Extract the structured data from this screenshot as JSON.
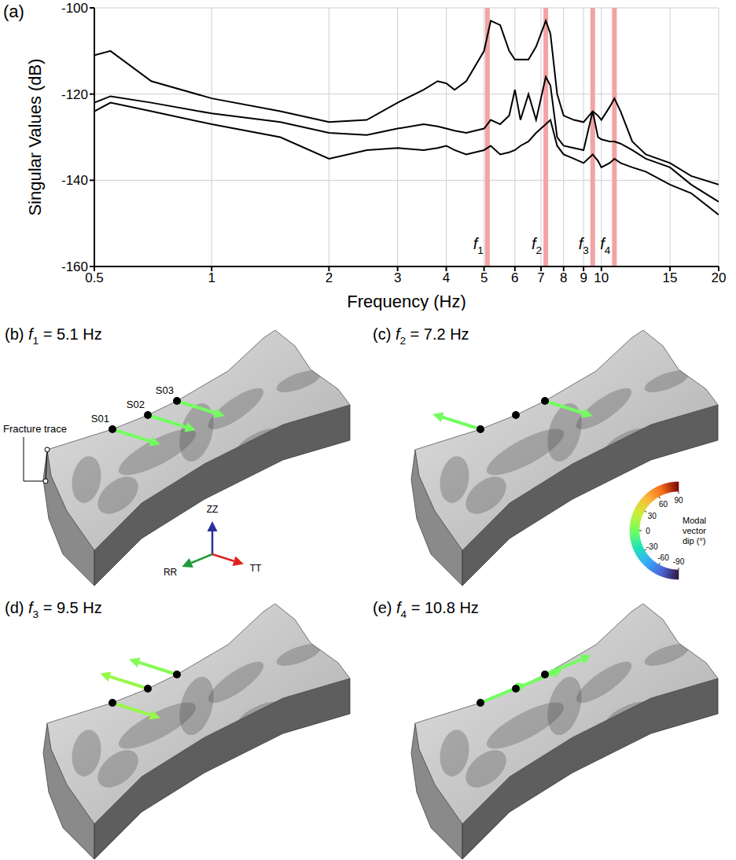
{
  "chart_data": {
    "type": "line",
    "letter": "(a)",
    "x_label": "Frequency (Hz)",
    "y_label": "Singular Values (dB)",
    "log": "x",
    "grid": true,
    "xlim": [
      0.5,
      20
    ],
    "xticks": [
      0.5,
      1,
      2,
      3,
      4,
      5,
      6,
      7,
      8,
      9,
      10,
      15,
      20
    ],
    "ylim": [
      -160,
      -100
    ],
    "yticks": [
      -160,
      -140,
      -120,
      -100
    ],
    "x": [
      0.5,
      0.55,
      0.7,
      1,
      1.5,
      2,
      2.5,
      3,
      3.5,
      3.8,
      4,
      4.2,
      4.5,
      5,
      5.2,
      5.5,
      5.8,
      6,
      6.2,
      6.5,
      6.8,
      7.2,
      7.4,
      7.7,
      8,
      8.5,
      9,
      9.5,
      9.8,
      10,
      10.5,
      10.8,
      11.2,
      12,
      13,
      15,
      17,
      20
    ],
    "series": [
      {
        "color": "#000000",
        "values": [
          -111,
          -110,
          -117,
          -121,
          -124,
          -126.5,
          -126,
          -122,
          -119,
          -117,
          -117.5,
          -119,
          -117,
          -110,
          -103,
          -104,
          -110,
          -112,
          -112,
          -112,
          -109,
          -103,
          -106,
          -120,
          -125,
          -126,
          -126.5,
          -124,
          -125,
          -126,
          -123,
          -121,
          -124,
          -131,
          -134,
          -136,
          -139,
          -141
        ]
      },
      {
        "color": "#000000",
        "values": [
          -122,
          -120.5,
          -122,
          -124.5,
          -126.5,
          -129,
          -129.5,
          -128,
          -127,
          -127.5,
          -128,
          -128.5,
          -129,
          -128,
          -126,
          -127,
          -125,
          -119,
          -126,
          -120,
          -126,
          -116,
          -118,
          -130,
          -132,
          -132.5,
          -133,
          -124,
          -130,
          -130.5,
          -131,
          -131,
          -131.5,
          -133,
          -135,
          -137,
          -141,
          -145
        ]
      },
      {
        "color": "#000000",
        "values": [
          -124,
          -122,
          -124,
          -127,
          -130,
          -135,
          -133,
          -132.5,
          -133,
          -132.5,
          -132,
          -133,
          -134,
          -133,
          -132,
          -134,
          -133.5,
          -133,
          -132,
          -131,
          -129,
          -127,
          -126,
          -132,
          -134,
          -135,
          -136,
          -134,
          -135.5,
          -137,
          -136,
          -135,
          -136,
          -137,
          -138,
          -141,
          -143,
          -148
        ]
      }
    ],
    "modes": [
      {
        "label": "f1",
        "frequency": 5.1
      },
      {
        "label": "f2",
        "frequency": 7.2
      },
      {
        "label": "f3",
        "frequency": 9.5
      },
      {
        "label": "f4",
        "frequency": 10.8
      }
    ]
  },
  "stations": [
    "S01",
    "S02",
    "S03"
  ],
  "axes": [
    {
      "label": "ZZ",
      "color": "#2a2f9c"
    },
    {
      "label": "RR",
      "color": "#1f9a3c"
    },
    {
      "label": "TT",
      "color": "#e0231f"
    }
  ],
  "colorbar": {
    "label": "Modal vector dip (°)",
    "range": [
      -90,
      90
    ],
    "ticks": [
      90,
      60,
      30,
      0,
      -30,
      -60,
      -90
    ]
  },
  "panels": [
    {
      "letter": "(b)",
      "title": "f1 = 5.1 Hz",
      "station_labels": [
        "S01",
        "S02",
        "S03"
      ],
      "annotation": "Fracture trace",
      "vectors": [
        {
          "station": "S01",
          "direction": "TT",
          "dip": 0
        },
        {
          "station": "S02",
          "direction": "TT",
          "dip": 0
        },
        {
          "station": "S03",
          "direction": "TT",
          "dip": 0
        }
      ]
    },
    {
      "letter": "(c)",
      "title": "f2 = 7.2 Hz",
      "vectors": [
        {
          "station": "S01",
          "direction": "-TT",
          "dip": 0
        },
        {
          "station": "S03",
          "direction": "TT",
          "dip": 0
        }
      ]
    },
    {
      "letter": "(d)",
      "title": "f3 = 9.5 Hz",
      "vectors": [
        {
          "station": "S01",
          "direction": "TT",
          "dip": 10
        },
        {
          "station": "S02",
          "direction": "-TT",
          "dip": 10
        },
        {
          "station": "S03",
          "direction": "-TT",
          "dip": 5
        }
      ]
    },
    {
      "letter": "(e)",
      "title": "f4 = 10.8 Hz",
      "vectors": [
        {
          "station": "S01",
          "direction": "-RR",
          "dip": 0
        },
        {
          "station": "S02",
          "direction": "-RR",
          "dip": 0
        },
        {
          "station": "S03",
          "direction": "-RR",
          "dip": 0
        }
      ]
    }
  ]
}
